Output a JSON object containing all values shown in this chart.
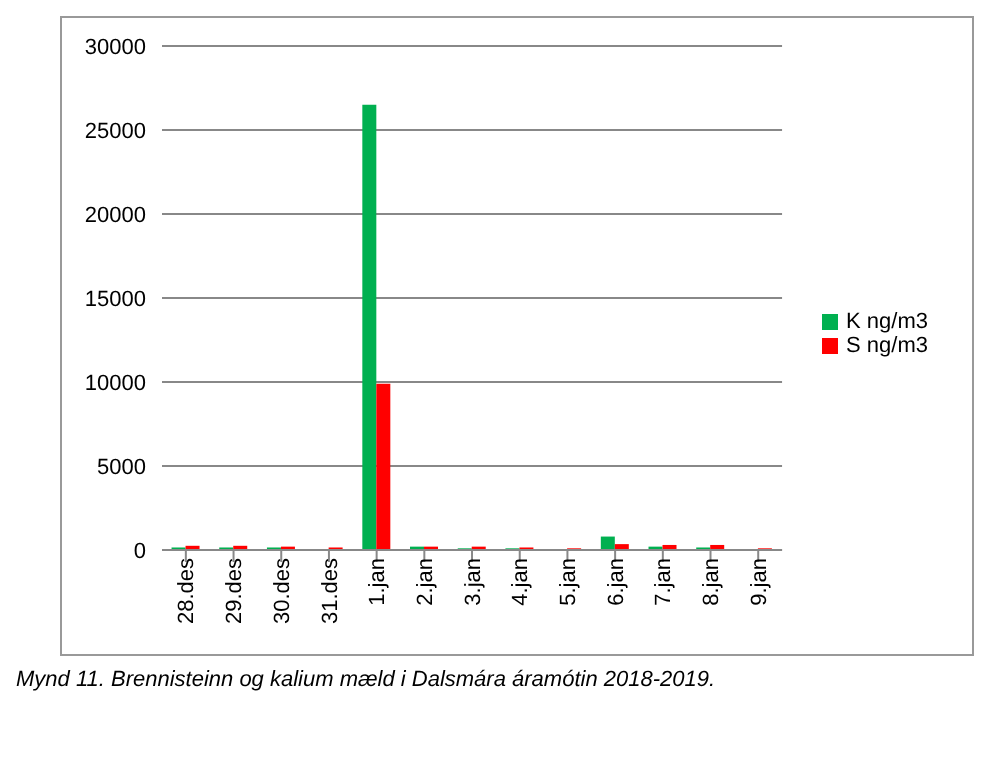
{
  "chart_data": {
    "type": "bar",
    "categories": [
      "28.des",
      "29.des",
      "30.des",
      "31.des",
      "1.jan",
      "2.jan",
      "3.jan",
      "4.jan",
      "5.jan",
      "6.jan",
      "7.jan",
      "8.jan",
      "9.jan"
    ],
    "series": [
      {
        "name": "K ng/m3",
        "color": "#00b050",
        "values": [
          150,
          150,
          150,
          30,
          26500,
          200,
          100,
          100,
          30,
          800,
          200,
          150,
          30
        ]
      },
      {
        "name": "S ng/m3",
        "color": "#ff0000",
        "values": [
          250,
          250,
          200,
          150,
          9900,
          200,
          200,
          150,
          100,
          350,
          300,
          300,
          100
        ]
      }
    ],
    "ylim": [
      0,
      30000
    ],
    "yticks": [
      0,
      5000,
      10000,
      15000,
      20000,
      25000,
      30000
    ],
    "grid": "y",
    "legend": "right",
    "annotations": [
      "Mynd 11. Brennisteinn og kalium mæld i Dalsmára áramótin 2018-2019."
    ]
  }
}
